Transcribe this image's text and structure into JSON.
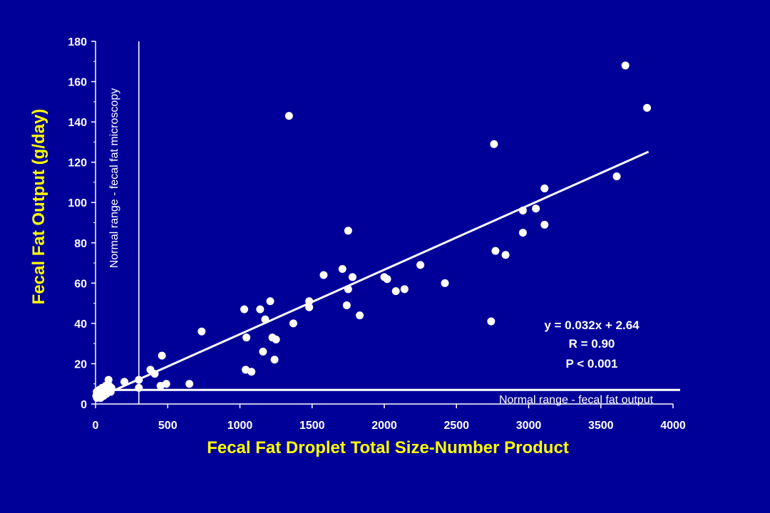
{
  "colors": {
    "background": "#000099",
    "axis": "#ffffff",
    "points": "#ffffff",
    "titles": "#ffff00"
  },
  "chart_data": {
    "type": "scatter",
    "xlabel": "Fecal Fat Droplet Total Size-Number Product",
    "ylabel": "Fecal Fat Output (g/day)",
    "xlim": [
      0,
      4000
    ],
    "ylim": [
      0,
      180
    ],
    "xticks": [
      0,
      500,
      1000,
      1500,
      2000,
      2500,
      3000,
      3500,
      4000
    ],
    "yticks": [
      0,
      20,
      40,
      60,
      80,
      100,
      120,
      140,
      160,
      180
    ],
    "grid": false,
    "series": [
      {
        "points": [
          [
            5,
            4
          ],
          [
            8,
            6
          ],
          [
            10,
            3
          ],
          [
            15,
            5
          ],
          [
            20,
            4
          ],
          [
            25,
            7
          ],
          [
            30,
            5
          ],
          [
            35,
            3
          ],
          [
            40,
            6
          ],
          [
            45,
            8
          ],
          [
            50,
            5
          ],
          [
            55,
            4
          ],
          [
            60,
            6
          ],
          [
            65,
            7
          ],
          [
            70,
            9
          ],
          [
            75,
            5
          ],
          [
            80,
            8
          ],
          [
            85,
            6
          ],
          [
            90,
            12
          ],
          [
            95,
            9
          ],
          [
            100,
            7
          ],
          [
            105,
            6
          ],
          [
            110,
            8
          ],
          [
            200,
            11
          ],
          [
            300,
            12
          ],
          [
            300,
            8
          ],
          [
            380,
            17
          ],
          [
            410,
            15
          ],
          [
            450,
            9
          ],
          [
            460,
            24
          ],
          [
            490,
            10
          ],
          [
            650,
            10
          ],
          [
            735,
            36
          ],
          [
            1030,
            47
          ],
          [
            1040,
            17
          ],
          [
            1045,
            33
          ],
          [
            1080,
            16
          ],
          [
            1140,
            47
          ],
          [
            1160,
            26
          ],
          [
            1175,
            42
          ],
          [
            1210,
            51
          ],
          [
            1225,
            33
          ],
          [
            1240,
            22
          ],
          [
            1250,
            32
          ],
          [
            1340,
            143
          ],
          [
            1370,
            40
          ],
          [
            1480,
            51
          ],
          [
            1480,
            48
          ],
          [
            1580,
            64
          ],
          [
            1710,
            67
          ],
          [
            1740,
            49
          ],
          [
            1750,
            57
          ],
          [
            1750,
            86
          ],
          [
            1780,
            63
          ],
          [
            1830,
            44
          ],
          [
            2000,
            63
          ],
          [
            2020,
            62
          ],
          [
            2080,
            56
          ],
          [
            2140,
            57
          ],
          [
            2250,
            69
          ],
          [
            2420,
            60
          ],
          [
            2740,
            41
          ],
          [
            2760,
            129
          ],
          [
            2770,
            76
          ],
          [
            2840,
            74
          ],
          [
            2960,
            85
          ],
          [
            2960,
            96
          ],
          [
            3050,
            97
          ],
          [
            3110,
            89
          ],
          [
            3110,
            107
          ],
          [
            3610,
            113
          ],
          [
            3670,
            168
          ],
          [
            3820,
            147
          ]
        ]
      }
    ],
    "fit_line": {
      "slope": 0.032,
      "intercept": 2.64,
      "x_range": [
        0,
        3830
      ]
    },
    "normal_range_x": 300,
    "normal_range_y": 7,
    "annotations": {
      "equation": "y = 0.032x + 2.64",
      "r": "R = 0.90",
      "p": "P < 0.001",
      "normal_microscopy": "Normal range - fecal fat microscopy",
      "normal_output": "Normal range - fecal fat output"
    }
  }
}
